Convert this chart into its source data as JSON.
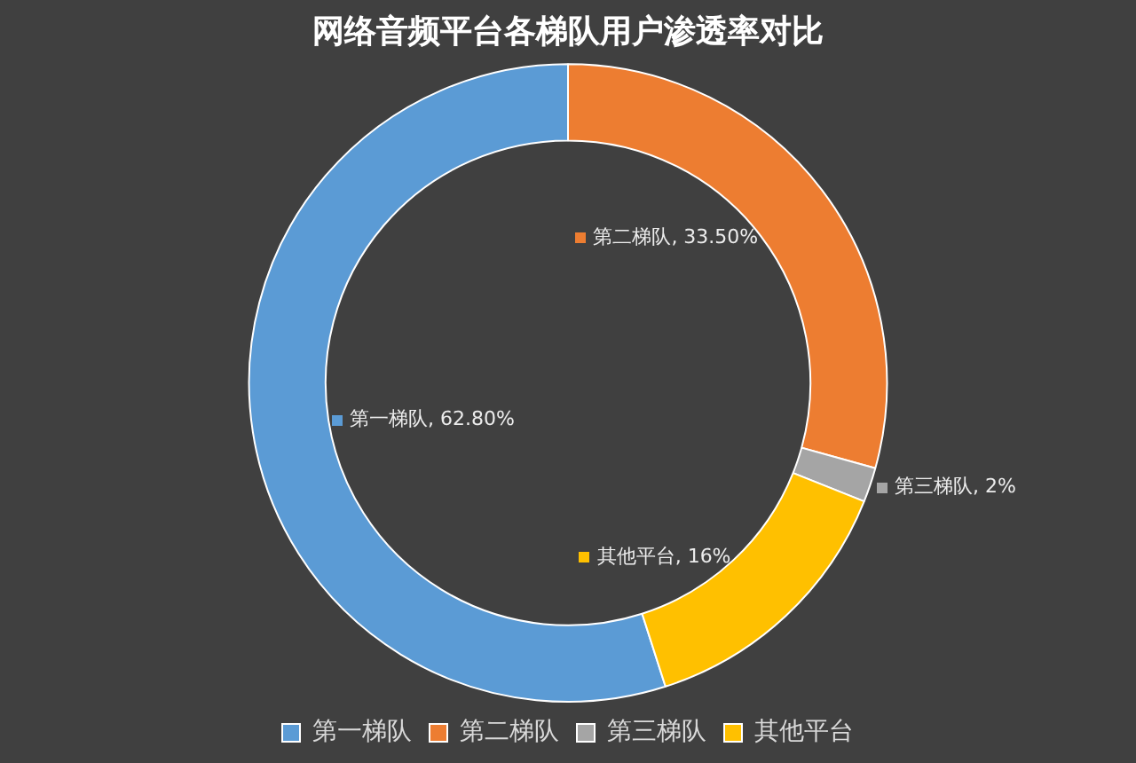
{
  "chart_data": {
    "type": "donut",
    "title": "网络音频平台各梯队用户渗透率对比",
    "categories": [
      "第一梯队",
      "第二梯队",
      "第三梯队",
      "其他平台"
    ],
    "values": [
      62.8,
      33.5,
      2,
      16
    ],
    "colors": [
      "#5b9bd5",
      "#ed7d31",
      "#a5a5a5",
      "#ffc000"
    ],
    "value_labels": [
      "第一梯队, 62.80%",
      "第二梯队, 33.50%",
      "第三梯队, 2%",
      "其他平台, 16%"
    ],
    "legend": "bottom"
  }
}
